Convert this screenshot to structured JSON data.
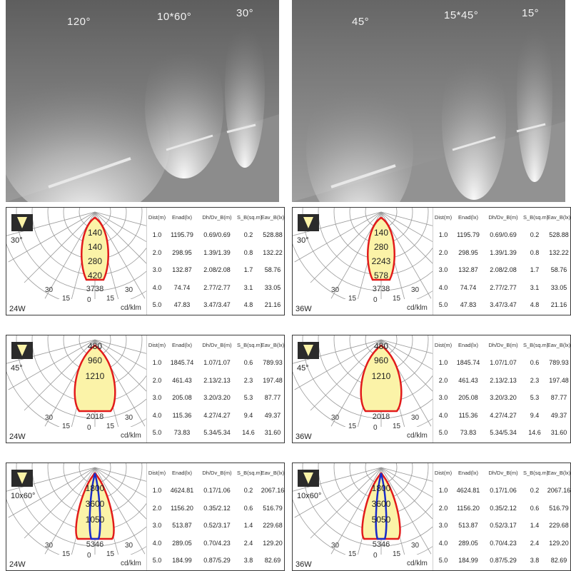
{
  "photos": [
    {
      "labels": [
        "120°",
        "10*60°",
        "30°"
      ]
    },
    {
      "labels": [
        "45°",
        "15*45°",
        "15°"
      ]
    }
  ],
  "table_headers": [
    "Dist(m)",
    "Enad(lx)",
    "Dh/Dv_B(m)",
    "S_B(sq.m)",
    "Eav_B(lx)"
  ],
  "unit_label": "cd/klm",
  "angle_ticks": [
    "30",
    "15",
    "0",
    "15",
    "30"
  ],
  "panels": [
    {
      "angle": "30°",
      "watt": "24W",
      "peak": "3738",
      "rings": [
        "140",
        "140",
        "280",
        "420"
      ],
      "rows": [
        [
          "1.0",
          "1195.79",
          "0.69/0.69",
          "0.2",
          "528.88"
        ],
        [
          "2.0",
          "298.95",
          "1.39/1.39",
          "0.8",
          "132.22"
        ],
        [
          "3.0",
          "132.87",
          "2.08/2.08",
          "1.7",
          "58.76"
        ],
        [
          "4.0",
          "74.74",
          "2.77/2.77",
          "3.1",
          "33.05"
        ],
        [
          "5.0",
          "47.83",
          "3.47/3.47",
          "4.8",
          "21.16"
        ]
      ]
    },
    {
      "angle": "30°",
      "watt": "36W",
      "peak": "3738",
      "rings": [
        "140",
        "280",
        "2243",
        "578"
      ],
      "rows": [
        [
          "1.0",
          "1195.79",
          "0.69/0.69",
          "0.2",
          "528.88"
        ],
        [
          "2.0",
          "298.95",
          "1.39/1.39",
          "0.8",
          "132.22"
        ],
        [
          "3.0",
          "132.87",
          "2.08/2.08",
          "1.7",
          "58.76"
        ],
        [
          "4.0",
          "74.74",
          "2.77/2.77",
          "3.1",
          "33.05"
        ],
        [
          "5.0",
          "47.83",
          "3.47/3.47",
          "4.8",
          "21.16"
        ]
      ]
    },
    {
      "angle": "45°",
      "watt": "24W",
      "peak": "2018",
      "rings": [
        "480",
        "960",
        "1210"
      ],
      "rows": [
        [
          "1.0",
          "1845.74",
          "1.07/1.07",
          "0.6",
          "789.93"
        ],
        [
          "2.0",
          "461.43",
          "2.13/2.13",
          "2.3",
          "197.48"
        ],
        [
          "3.0",
          "205.08",
          "3.20/3.20",
          "5.3",
          "87.77"
        ],
        [
          "4.0",
          "115.36",
          "4.27/4.27",
          "9.4",
          "49.37"
        ],
        [
          "5.0",
          "73.83",
          "5.34/5.34",
          "14.6",
          "31.60"
        ]
      ]
    },
    {
      "angle": "45°",
      "watt": "36W",
      "peak": "2018",
      "rings": [
        "480",
        "960",
        "1210"
      ],
      "rows": [
        [
          "1.0",
          "1845.74",
          "1.07/1.07",
          "0.6",
          "789.93"
        ],
        [
          "2.0",
          "461.43",
          "2.13/2.13",
          "2.3",
          "197.48"
        ],
        [
          "3.0",
          "205.08",
          "3.20/3.20",
          "5.3",
          "87.77"
        ],
        [
          "4.0",
          "115.36",
          "4.27/4.27",
          "9.4",
          "49.37"
        ],
        [
          "5.0",
          "73.83",
          "5.34/5.34",
          "14.6",
          "31.60"
        ]
      ]
    },
    {
      "angle": "10x60°",
      "watt": "24W",
      "peak": "5346",
      "rings": [
        "1800",
        "3600",
        "1050"
      ],
      "rows": [
        [
          "1.0",
          "4624.81",
          "0.17/1.06",
          "0.2",
          "2067.16"
        ],
        [
          "2.0",
          "1156.20",
          "0.35/2.12",
          "0.6",
          "516.79"
        ],
        [
          "3.0",
          "513.87",
          "0.52/3.17",
          "1.4",
          "229.68"
        ],
        [
          "4.0",
          "289.05",
          "0.70/4.23",
          "2.4",
          "129.20"
        ],
        [
          "5.0",
          "184.99",
          "0.87/5.29",
          "3.8",
          "82.69"
        ]
      ]
    },
    {
      "angle": "10x60°",
      "watt": "36W",
      "peak": "5346",
      "rings": [
        "1800",
        "3600",
        "5050"
      ],
      "rows": [
        [
          "1.0",
          "4624.81",
          "0.17/1.06",
          "0.2",
          "2067.16"
        ],
        [
          "2.0",
          "1156.20",
          "0.35/2.12",
          "0.6",
          "516.79"
        ],
        [
          "3.0",
          "513.87",
          "0.52/3.17",
          "1.4",
          "229.68"
        ],
        [
          "4.0",
          "289.05",
          "0.70/4.23",
          "2.4",
          "129.20"
        ],
        [
          "5.0",
          "184.99",
          "0.87/5.29",
          "3.8",
          "82.69"
        ]
      ]
    }
  ]
}
